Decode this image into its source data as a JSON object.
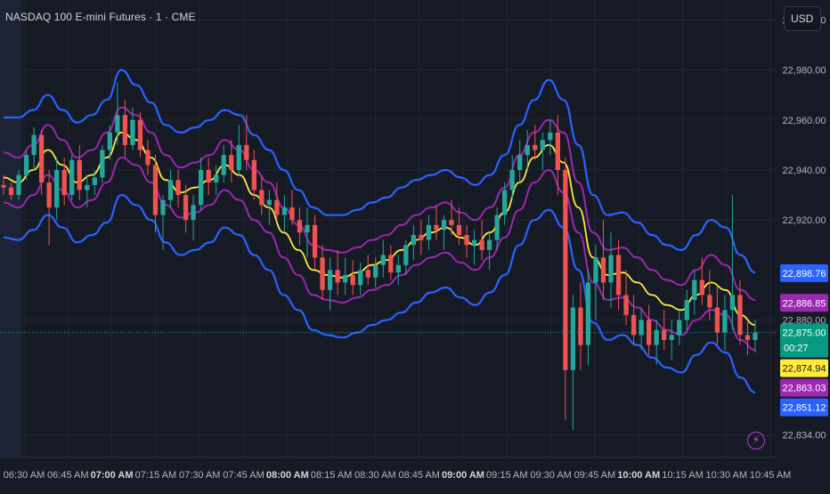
{
  "header": {
    "title": "NASDAQ 100 E-mini Futures · 1 · CME",
    "currency": "USD"
  },
  "colors": {
    "background": "#161a25",
    "grid": "#232733",
    "up": "#26a69a",
    "down": "#ef5350",
    "outer_band": "#2962ff",
    "inner_band": "#9c27b0",
    "center_line": "#ffeb3b",
    "axis_text": "#b2b5be"
  },
  "icons": {
    "flash": "lightning-bolt-icon"
  },
  "chart_data": {
    "type": "candlestick",
    "title": "NASDAQ 100 E-mini Futures · 1 · CME",
    "ylim": [
      22825,
      23008
    ],
    "y_ticks": [
      {
        "value": 23000,
        "label": "23,000.00"
      },
      {
        "value": 22980,
        "label": "22,980.00"
      },
      {
        "value": 22960,
        "label": "22,960.00"
      },
      {
        "value": 22940,
        "label": "22,940.00"
      },
      {
        "value": 22920,
        "label": "22,920.00"
      },
      {
        "value": 22880,
        "label": "22,880.00"
      },
      {
        "value": 22834,
        "label": "22,834.00"
      }
    ],
    "x_ticks": [
      {
        "label": "06:30 AM",
        "bold": false
      },
      {
        "label": "06:45 AM",
        "bold": false
      },
      {
        "label": "07:00 AM",
        "bold": true
      },
      {
        "label": "07:15 AM",
        "bold": false
      },
      {
        "label": "07:30 AM",
        "bold": false
      },
      {
        "label": "07:45 AM",
        "bold": false
      },
      {
        "label": "08:00 AM",
        "bold": true
      },
      {
        "label": "08:15 AM",
        "bold": false
      },
      {
        "label": "08:30 AM",
        "bold": false
      },
      {
        "label": "08:45 AM",
        "bold": false
      },
      {
        "label": "09:00 AM",
        "bold": true
      },
      {
        "label": "09:15 AM",
        "bold": false
      },
      {
        "label": "09:30 AM",
        "bold": false
      },
      {
        "label": "09:45 AM",
        "bold": false
      },
      {
        "label": "10:00 AM",
        "bold": true
      },
      {
        "label": "10:15 AM",
        "bold": false
      },
      {
        "label": "10:30 AM",
        "bold": false
      },
      {
        "label": "10:45 AM",
        "bold": false
      }
    ],
    "last_close": 22875,
    "countdown": "00:27",
    "price_labels": [
      {
        "value": 22898.76,
        "text": "22,898.76",
        "color": "#2962ff",
        "text_color": "#ffffff"
      },
      {
        "value": 22886.85,
        "text": "22,886.85",
        "color": "#9c27b0",
        "text_color": "#ffffff"
      },
      {
        "value": 22875.0,
        "text": "22,875.00",
        "color": "#089981",
        "text_color": "#ffffff"
      },
      {
        "value": 22874.94,
        "text": "22,874.94",
        "color": "#ffeb3b",
        "text_color": "#131722"
      },
      {
        "value": 22863.03,
        "text": "22,863.03",
        "color": "#9c27b0",
        "text_color": "#ffffff"
      },
      {
        "value": 22851.12,
        "text": "22,851.12",
        "color": "#2962ff",
        "text_color": "#ffffff"
      }
    ],
    "series": [
      {
        "name": "",
        "role": "center",
        "color": "#ffeb3b",
        "values": [
          22937,
          22935,
          22940,
          22948,
          22942,
          22935,
          22938,
          22945,
          22955,
          22952,
          22945,
          22936,
          22931,
          22933,
          22936,
          22942,
          22938,
          22930,
          22925,
          22915,
          22908,
          22900,
          22898,
          22897,
          22899,
          22902,
          22904,
          22908,
          22912,
          22915,
          22917,
          22913,
          22910,
          22915,
          22923,
          22935,
          22945,
          22950,
          22943,
          22925,
          22905,
          22898,
          22899,
          22895,
          22890,
          22886,
          22884,
          22890,
          22895,
          22892,
          22882,
          22878
        ]
      },
      {
        "name": "",
        "role": "inner_upper",
        "color": "#9c27b0",
        "values": [
          22947,
          22945,
          22950,
          22958,
          22952,
          22945,
          22948,
          22955,
          22965,
          22962,
          22955,
          22946,
          22941,
          22943,
          22946,
          22952,
          22948,
          22940,
          22935,
          22925,
          22918,
          22910,
          22908,
          22907,
          22909,
          22912,
          22914,
          22918,
          22922,
          22925,
          22927,
          22923,
          22920,
          22925,
          22933,
          22946,
          22955,
          22960,
          22955,
          22935,
          22915,
          22908,
          22909,
          22905,
          22900,
          22896,
          22894,
          22900,
          22906,
          22902,
          22892,
          22888
        ]
      },
      {
        "name": "",
        "role": "inner_lower",
        "color": "#9c27b0",
        "values": [
          22927,
          22925,
          22930,
          22938,
          22932,
          22925,
          22928,
          22935,
          22945,
          22942,
          22935,
          22926,
          22921,
          22923,
          22926,
          22932,
          22928,
          22920,
          22915,
          22905,
          22898,
          22890,
          22888,
          22887,
          22889,
          22892,
          22894,
          22898,
          22902,
          22905,
          22907,
          22903,
          22900,
          22905,
          22913,
          22924,
          22935,
          22940,
          22931,
          22915,
          22895,
          22888,
          22889,
          22885,
          22880,
          22876,
          22874,
          22880,
          22884,
          22882,
          22872,
          22868
        ]
      },
      {
        "name": "",
        "role": "outer_upper",
        "color": "#2962ff",
        "values": [
          22961,
          22961,
          22964,
          22970,
          22964,
          22959,
          22962,
          22968,
          22980,
          22974,
          22967,
          22958,
          22955,
          22957,
          22960,
          22964,
          22962,
          22954,
          22948,
          22940,
          22932,
          22925,
          22922,
          22922,
          22924,
          22927,
          22929,
          22933,
          22936,
          22938,
          22940,
          22937,
          22934,
          22938,
          22946,
          22958,
          22968,
          22976,
          22968,
          22950,
          22930,
          22922,
          22923,
          22919,
          22914,
          22910,
          22908,
          22914,
          22920,
          22917,
          22906,
          22899
        ]
      },
      {
        "name": "",
        "role": "outer_lower",
        "color": "#2962ff",
        "values": [
          22913,
          22912,
          22916,
          22922,
          22917,
          22911,
          22914,
          22919,
          22930,
          22926,
          22920,
          22911,
          22906,
          22908,
          22911,
          22917,
          22914,
          22906,
          22900,
          22890,
          22884,
          22876,
          22874,
          22873,
          22875,
          22878,
          22880,
          22883,
          22887,
          22891,
          22893,
          22889,
          22886,
          22891,
          22898,
          22910,
          22920,
          22924,
          22917,
          22900,
          22879,
          22872,
          22874,
          22870,
          22865,
          22861,
          22859,
          22866,
          22871,
          22867,
          22857,
          22851
        ]
      }
    ],
    "candles": [
      {
        "o": 22934,
        "h": 22938,
        "l": 22930,
        "c": 22933
      },
      {
        "o": 22933,
        "h": 22935,
        "l": 22928,
        "c": 22930
      },
      {
        "o": 22930,
        "h": 22940,
        "l": 22928,
        "c": 22938
      },
      {
        "o": 22938,
        "h": 22948,
        "l": 22936,
        "c": 22946
      },
      {
        "o": 22946,
        "h": 22957,
        "l": 22940,
        "c": 22954
      },
      {
        "o": 22954,
        "h": 22956,
        "l": 22930,
        "c": 22935
      },
      {
        "o": 22935,
        "h": 22940,
        "l": 22910,
        "c": 22925
      },
      {
        "o": 22925,
        "h": 22945,
        "l": 22920,
        "c": 22940
      },
      {
        "o": 22940,
        "h": 22945,
        "l": 22926,
        "c": 22930
      },
      {
        "o": 22930,
        "h": 22946,
        "l": 22928,
        "c": 22944
      },
      {
        "o": 22944,
        "h": 22950,
        "l": 22928,
        "c": 22932
      },
      {
        "o": 22932,
        "h": 22938,
        "l": 22925,
        "c": 22934
      },
      {
        "o": 22934,
        "h": 22940,
        "l": 22930,
        "c": 22937
      },
      {
        "o": 22937,
        "h": 22950,
        "l": 22935,
        "c": 22948
      },
      {
        "o": 22948,
        "h": 22958,
        "l": 22944,
        "c": 22955
      },
      {
        "o": 22955,
        "h": 22975,
        "l": 22950,
        "c": 22962
      },
      {
        "o": 22962,
        "h": 22968,
        "l": 22945,
        "c": 22950
      },
      {
        "o": 22950,
        "h": 22965,
        "l": 22948,
        "c": 22960
      },
      {
        "o": 22960,
        "h": 22963,
        "l": 22945,
        "c": 22948
      },
      {
        "o": 22948,
        "h": 22952,
        "l": 22938,
        "c": 22942
      },
      {
        "o": 22942,
        "h": 22946,
        "l": 22915,
        "c": 22922
      },
      {
        "o": 22922,
        "h": 22930,
        "l": 22908,
        "c": 22928
      },
      {
        "o": 22928,
        "h": 22940,
        "l": 22925,
        "c": 22936
      },
      {
        "o": 22936,
        "h": 22940,
        "l": 22925,
        "c": 22930
      },
      {
        "o": 22930,
        "h": 22934,
        "l": 22915,
        "c": 22920
      },
      {
        "o": 22920,
        "h": 22930,
        "l": 22912,
        "c": 22926
      },
      {
        "o": 22926,
        "h": 22945,
        "l": 22924,
        "c": 22940
      },
      {
        "o": 22940,
        "h": 22945,
        "l": 22930,
        "c": 22935
      },
      {
        "o": 22935,
        "h": 22942,
        "l": 22930,
        "c": 22938
      },
      {
        "o": 22938,
        "h": 22950,
        "l": 22935,
        "c": 22946
      },
      {
        "o": 22946,
        "h": 22952,
        "l": 22935,
        "c": 22940
      },
      {
        "o": 22940,
        "h": 22958,
        "l": 22938,
        "c": 22950
      },
      {
        "o": 22950,
        "h": 22962,
        "l": 22940,
        "c": 22944
      },
      {
        "o": 22944,
        "h": 22948,
        "l": 22928,
        "c": 22932
      },
      {
        "o": 22932,
        "h": 22938,
        "l": 22922,
        "c": 22926
      },
      {
        "o": 22926,
        "h": 22932,
        "l": 22918,
        "c": 22928
      },
      {
        "o": 22928,
        "h": 22935,
        "l": 22920,
        "c": 22922
      },
      {
        "o": 22922,
        "h": 22930,
        "l": 22915,
        "c": 22925
      },
      {
        "o": 22925,
        "h": 22932,
        "l": 22918,
        "c": 22920
      },
      {
        "o": 22920,
        "h": 22925,
        "l": 22910,
        "c": 22915
      },
      {
        "o": 22915,
        "h": 22925,
        "l": 22905,
        "c": 22918
      },
      {
        "o": 22918,
        "h": 22922,
        "l": 22900,
        "c": 22905
      },
      {
        "o": 22905,
        "h": 22910,
        "l": 22888,
        "c": 22892
      },
      {
        "o": 22892,
        "h": 22905,
        "l": 22884,
        "c": 22900
      },
      {
        "o": 22900,
        "h": 22908,
        "l": 22890,
        "c": 22895
      },
      {
        "o": 22895,
        "h": 22905,
        "l": 22890,
        "c": 22898
      },
      {
        "o": 22898,
        "h": 22904,
        "l": 22890,
        "c": 22894
      },
      {
        "o": 22894,
        "h": 22903,
        "l": 22890,
        "c": 22900
      },
      {
        "o": 22900,
        "h": 22906,
        "l": 22894,
        "c": 22897
      },
      {
        "o": 22897,
        "h": 22905,
        "l": 22893,
        "c": 22902
      },
      {
        "o": 22902,
        "h": 22912,
        "l": 22897,
        "c": 22906
      },
      {
        "o": 22906,
        "h": 22910,
        "l": 22896,
        "c": 22899
      },
      {
        "o": 22899,
        "h": 22906,
        "l": 22894,
        "c": 22902
      },
      {
        "o": 22902,
        "h": 22912,
        "l": 22898,
        "c": 22910
      },
      {
        "o": 22910,
        "h": 22918,
        "l": 22904,
        "c": 22914
      },
      {
        "o": 22914,
        "h": 22920,
        "l": 22906,
        "c": 22912
      },
      {
        "o": 22912,
        "h": 22922,
        "l": 22908,
        "c": 22918
      },
      {
        "o": 22918,
        "h": 22926,
        "l": 22912,
        "c": 22916
      },
      {
        "o": 22916,
        "h": 22922,
        "l": 22908,
        "c": 22920
      },
      {
        "o": 22920,
        "h": 22928,
        "l": 22914,
        "c": 22918
      },
      {
        "o": 22918,
        "h": 22925,
        "l": 22910,
        "c": 22914
      },
      {
        "o": 22914,
        "h": 22918,
        "l": 22905,
        "c": 22910
      },
      {
        "o": 22910,
        "h": 22916,
        "l": 22902,
        "c": 22912
      },
      {
        "o": 22912,
        "h": 22920,
        "l": 22904,
        "c": 22908
      },
      {
        "o": 22908,
        "h": 22915,
        "l": 22900,
        "c": 22912
      },
      {
        "o": 22912,
        "h": 22925,
        "l": 22908,
        "c": 22922
      },
      {
        "o": 22922,
        "h": 22935,
        "l": 22918,
        "c": 22932
      },
      {
        "o": 22932,
        "h": 22946,
        "l": 22928,
        "c": 22940
      },
      {
        "o": 22940,
        "h": 22952,
        "l": 22935,
        "c": 22946
      },
      {
        "o": 22946,
        "h": 22956,
        "l": 22940,
        "c": 22950
      },
      {
        "o": 22950,
        "h": 22958,
        "l": 22944,
        "c": 22948
      },
      {
        "o": 22948,
        "h": 22955,
        "l": 22940,
        "c": 22952
      },
      {
        "o": 22952,
        "h": 22960,
        "l": 22946,
        "c": 22955
      },
      {
        "o": 22955,
        "h": 22962,
        "l": 22930,
        "c": 22940
      },
      {
        "o": 22940,
        "h": 22945,
        "l": 22840,
        "c": 22860
      },
      {
        "o": 22860,
        "h": 22890,
        "l": 22836,
        "c": 22885
      },
      {
        "o": 22885,
        "h": 22895,
        "l": 22860,
        "c": 22870
      },
      {
        "o": 22870,
        "h": 22900,
        "l": 22862,
        "c": 22895
      },
      {
        "o": 22895,
        "h": 22910,
        "l": 22880,
        "c": 22905
      },
      {
        "o": 22905,
        "h": 22920,
        "l": 22888,
        "c": 22895
      },
      {
        "o": 22895,
        "h": 22915,
        "l": 22885,
        "c": 22906
      },
      {
        "o": 22906,
        "h": 22912,
        "l": 22884,
        "c": 22890
      },
      {
        "o": 22890,
        "h": 22900,
        "l": 22878,
        "c": 22882
      },
      {
        "o": 22882,
        "h": 22890,
        "l": 22870,
        "c": 22874
      },
      {
        "o": 22874,
        "h": 22885,
        "l": 22868,
        "c": 22880
      },
      {
        "o": 22880,
        "h": 22886,
        "l": 22866,
        "c": 22870
      },
      {
        "o": 22870,
        "h": 22880,
        "l": 22862,
        "c": 22876
      },
      {
        "o": 22876,
        "h": 22884,
        "l": 22868,
        "c": 22872
      },
      {
        "o": 22872,
        "h": 22880,
        "l": 22864,
        "c": 22874
      },
      {
        "o": 22874,
        "h": 22884,
        "l": 22870,
        "c": 22880
      },
      {
        "o": 22880,
        "h": 22892,
        "l": 22876,
        "c": 22888
      },
      {
        "o": 22888,
        "h": 22900,
        "l": 22882,
        "c": 22896
      },
      {
        "o": 22896,
        "h": 22905,
        "l": 22886,
        "c": 22890
      },
      {
        "o": 22890,
        "h": 22900,
        "l": 22880,
        "c": 22885
      },
      {
        "o": 22885,
        "h": 22894,
        "l": 22870,
        "c": 22875
      },
      {
        "o": 22875,
        "h": 22890,
        "l": 22868,
        "c": 22884
      },
      {
        "o": 22884,
        "h": 22930,
        "l": 22876,
        "c": 22890
      },
      {
        "o": 22890,
        "h": 22896,
        "l": 22870,
        "c": 22874
      },
      {
        "o": 22874,
        "h": 22880,
        "l": 22866,
        "c": 22872
      },
      {
        "o": 22872,
        "h": 22880,
        "l": 22867,
        "c": 22875
      }
    ]
  }
}
